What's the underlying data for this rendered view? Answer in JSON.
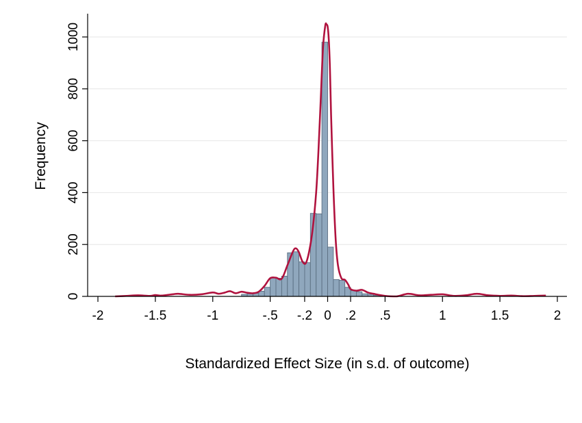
{
  "chart_data": {
    "type": "bar",
    "title": "",
    "xlabel": "Standardized Effect Size (in s.d. of outcome)",
    "ylabel": "Frequency",
    "xlim": [
      -2,
      2
    ],
    "ylim": [
      0,
      1080
    ],
    "x_ticks": [
      {
        "value": -2,
        "label": "-2"
      },
      {
        "value": -1.5,
        "label": "-1.5"
      },
      {
        "value": -1,
        "label": "-1"
      },
      {
        "value": -0.5,
        "label": "-.5"
      },
      {
        "value": -0.2,
        "label": "-.2"
      },
      {
        "value": 0,
        "label": "0"
      },
      {
        "value": 0.2,
        "label": ".2"
      },
      {
        "value": 0.5,
        "label": ".5"
      },
      {
        "value": 1,
        "label": "1"
      },
      {
        "value": 1.5,
        "label": "1.5"
      },
      {
        "value": 2,
        "label": "2"
      }
    ],
    "y_ticks": [
      {
        "value": 0,
        "label": "0"
      },
      {
        "value": 200,
        "label": "200"
      },
      {
        "value": 400,
        "label": "400"
      },
      {
        "value": 600,
        "label": "600"
      },
      {
        "value": 800,
        "label": "800"
      },
      {
        "value": 1000,
        "label": "1000"
      }
    ],
    "grid": true,
    "bin_width": 0.05,
    "bins": [
      {
        "start": -0.75,
        "value": 8
      },
      {
        "start": -0.7,
        "value": 10
      },
      {
        "start": -0.65,
        "value": 12
      },
      {
        "start": -0.6,
        "value": 20
      },
      {
        "start": -0.55,
        "value": 35
      },
      {
        "start": -0.5,
        "value": 72
      },
      {
        "start": -0.45,
        "value": 70
      },
      {
        "start": -0.4,
        "value": 78
      },
      {
        "start": -0.35,
        "value": 168
      },
      {
        "start": -0.3,
        "value": 172
      },
      {
        "start": -0.25,
        "value": 133
      },
      {
        "start": -0.2,
        "value": 130
      },
      {
        "start": -0.15,
        "value": 320
      },
      {
        "start": -0.1,
        "value": 318
      },
      {
        "start": -0.05,
        "value": 980
      },
      {
        "start": 0.0,
        "value": 190
      },
      {
        "start": 0.05,
        "value": 65
      },
      {
        "start": 0.1,
        "value": 62
      },
      {
        "start": 0.15,
        "value": 35
      },
      {
        "start": 0.2,
        "value": 22
      },
      {
        "start": 0.25,
        "value": 18
      },
      {
        "start": 0.3,
        "value": 10
      },
      {
        "start": 0.35,
        "value": 8
      },
      {
        "start": 0.4,
        "value": 4
      }
    ],
    "density_curve": {
      "x": [
        -1.85,
        -1.75,
        -1.65,
        -1.55,
        -1.5,
        -1.45,
        -1.35,
        -1.3,
        -1.2,
        -1.1,
        -1.0,
        -0.95,
        -0.9,
        -0.85,
        -0.8,
        -0.75,
        -0.7,
        -0.65,
        -0.6,
        -0.55,
        -0.5,
        -0.45,
        -0.4,
        -0.35,
        -0.3,
        -0.275,
        -0.25,
        -0.22,
        -0.19,
        -0.16,
        -0.13,
        -0.1,
        -0.08,
        -0.06,
        -0.04,
        -0.02,
        -0.01,
        0.0,
        0.01,
        0.02,
        0.03,
        0.05,
        0.07,
        0.09,
        0.12,
        0.15,
        0.18,
        0.2,
        0.25,
        0.3,
        0.35,
        0.4,
        0.5,
        0.6,
        0.7,
        0.8,
        0.9,
        1.0,
        1.1,
        1.2,
        1.3,
        1.4,
        1.5,
        1.6,
        1.7,
        1.8,
        1.9
      ],
      "y": [
        0,
        2,
        4,
        2,
        5,
        3,
        8,
        10,
        6,
        8,
        15,
        10,
        14,
        20,
        12,
        18,
        14,
        12,
        18,
        40,
        70,
        72,
        68,
        120,
        175,
        185,
        170,
        135,
        128,
        175,
        260,
        400,
        560,
        760,
        960,
        1045,
        1048,
        1040,
        990,
        880,
        700,
        420,
        220,
        120,
        70,
        64,
        45,
        28,
        22,
        25,
        15,
        10,
        2,
        0,
        10,
        4,
        6,
        8,
        2,
        4,
        10,
        4,
        2,
        3,
        1,
        2,
        3
      ]
    },
    "bar_color": "#8fa7bd",
    "bar_edge_color": "#5b6f82",
    "curve_color": "#b0123e"
  }
}
